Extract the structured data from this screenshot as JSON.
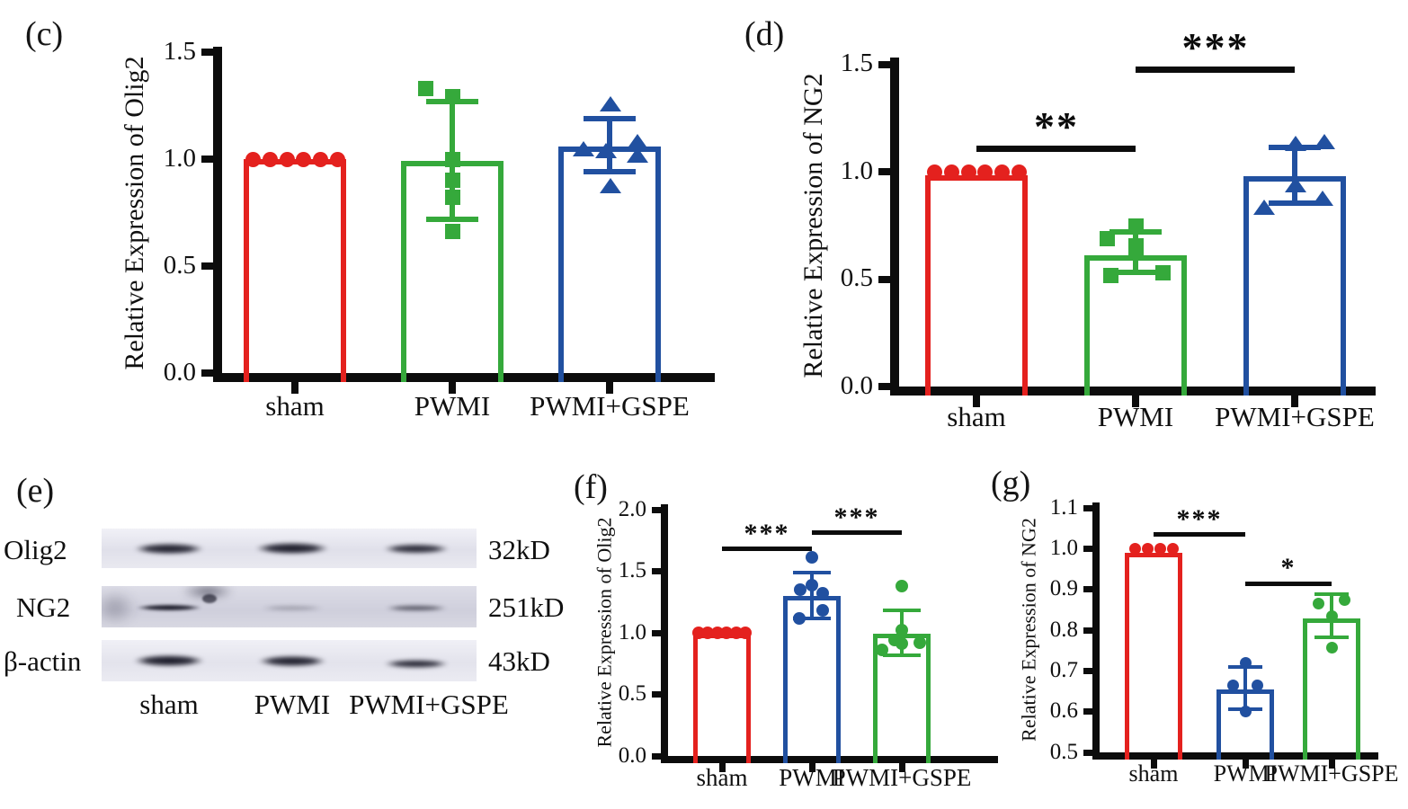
{
  "palette": {
    "red": "#E4211E",
    "green": "#35A93B",
    "blue": "#2150A0",
    "black": "#0c0c0c"
  },
  "chart_data": [
    {
      "id": "c",
      "panel_label": "(c)",
      "type": "bar",
      "title": "",
      "xlabel": "",
      "ylabel": "Relative Expression of Olig2",
      "ylim": [
        0,
        1.5
      ],
      "yticks": [
        0,
        0.5,
        1.0,
        1.5
      ],
      "ytick_labels": [
        "0.0",
        "0.5",
        "1.0",
        "1.5"
      ],
      "categories": [
        "sham",
        "PWMI",
        "PWMI+GSPE"
      ],
      "groups": [
        {
          "name": "sham",
          "color_key": "red",
          "marker": "circle",
          "bar": 1.0,
          "points": [
            [
              1.0,
              -47
            ],
            [
              1.0,
              -28
            ],
            [
              1.0,
              -9
            ],
            [
              1.0,
              9
            ],
            [
              1.0,
              28
            ],
            [
              1.0,
              47
            ]
          ]
        },
        {
          "name": "PWMI",
          "color_key": "green",
          "marker": "square",
          "bar": 0.99,
          "error": [
            0.72,
            1.27
          ],
          "points": [
            [
              1.33,
              -30
            ],
            [
              1.29,
              0
            ],
            [
              1.0,
              0
            ],
            [
              0.9,
              0
            ],
            [
              0.82,
              0
            ],
            [
              0.66,
              0
            ]
          ]
        },
        {
          "name": "PWMI+GSPE",
          "color_key": "blue",
          "marker": "triangle",
          "bar": 1.06,
          "error": [
            0.94,
            1.19
          ],
          "points": [
            [
              1.26,
              0
            ],
            [
              1.08,
              30
            ],
            [
              1.05,
              -30
            ],
            [
              1.04,
              -5
            ],
            [
              1.02,
              30
            ],
            [
              0.875,
              0
            ]
          ]
        }
      ],
      "significance": []
    },
    {
      "id": "d",
      "panel_label": "(d)",
      "type": "bar",
      "title": "",
      "xlabel": "",
      "ylabel": "Relative Expression of NG2",
      "ylim": [
        0,
        1.5
      ],
      "yticks": [
        0,
        0.5,
        1.0,
        1.5
      ],
      "ytick_labels": [
        "0.0",
        "0.5",
        "1.0",
        "1.5"
      ],
      "categories": [
        "sham",
        "PWMI",
        "PWMI+GSPE"
      ],
      "groups": [
        {
          "name": "sham",
          "color_key": "red",
          "marker": "circle",
          "bar": 0.985,
          "points": [
            [
              1.0,
              -47
            ],
            [
              1.0,
              -28
            ],
            [
              1.0,
              -9
            ],
            [
              1.0,
              9
            ],
            [
              1.0,
              28
            ],
            [
              1.0,
              47
            ]
          ]
        },
        {
          "name": "PWMI",
          "color_key": "green",
          "marker": "square",
          "bar": 0.61,
          "error": [
            0.53,
            0.72
          ],
          "points": [
            [
              0.745,
              0
            ],
            [
              0.69,
              -32
            ],
            [
              0.655,
              0
            ],
            [
              0.62,
              0
            ],
            [
              0.53,
              30
            ],
            [
              0.515,
              -28
            ]
          ]
        },
        {
          "name": "PWMI+GSPE",
          "color_key": "blue",
          "marker": "triangle",
          "bar": 0.98,
          "error": [
            0.855,
            1.115
          ],
          "points": [
            [
              1.14,
              32
            ],
            [
              1.13,
              0
            ],
            [
              0.94,
              0
            ],
            [
              0.875,
              30
            ],
            [
              0.835,
              -35
            ]
          ]
        }
      ],
      "significance": [
        {
          "label": "**",
          "from": 0,
          "to": 1,
          "v": 1.12
        },
        {
          "label": "***",
          "from": 1,
          "to": 2,
          "v": 1.49
        }
      ]
    },
    {
      "id": "f",
      "panel_label": "(f)",
      "type": "bar",
      "title": "",
      "xlabel": "",
      "ylabel": "Relative Expression of Olig2",
      "ylim": [
        0,
        2.0
      ],
      "yticks": [
        0,
        0.5,
        1.0,
        1.5,
        2.0
      ],
      "ytick_labels": [
        "0.0",
        "0.5",
        "1.0",
        "1.5",
        "2.0"
      ],
      "categories": [
        "sham",
        "PWMI",
        "PWMI+GSPE"
      ],
      "groups": [
        {
          "name": "sham",
          "color_key": "red",
          "marker": "circle",
          "bar": 0.995,
          "points": [
            [
              1.0,
              -26
            ],
            [
              1.0,
              -16
            ],
            [
              1.0,
              -5
            ],
            [
              1.0,
              5
            ],
            [
              1.0,
              16
            ],
            [
              1.0,
              26
            ]
          ]
        },
        {
          "name": "PWMI",
          "color_key": "blue",
          "marker": "circle",
          "bar": 1.3,
          "error": [
            1.12,
            1.49
          ],
          "points": [
            [
              1.61,
              0
            ],
            [
              1.39,
              0
            ],
            [
              1.35,
              -13
            ],
            [
              1.32,
              12
            ],
            [
              1.18,
              12
            ],
            [
              1.12,
              -14
            ]
          ]
        },
        {
          "name": "PWMI+GSPE",
          "color_key": "green",
          "marker": "circle",
          "bar": 0.99,
          "error": [
            0.82,
            1.18
          ],
          "points": [
            [
              1.38,
              0
            ],
            [
              1.02,
              0
            ],
            [
              0.94,
              -8
            ],
            [
              0.92,
              20
            ],
            [
              0.91,
              0
            ],
            [
              0.86,
              -22
            ]
          ]
        }
      ],
      "significance": [
        {
          "label": "***",
          "from": 0,
          "to": 1,
          "v": 1.7
        },
        {
          "label": "***",
          "from": 1,
          "to": 2,
          "v": 1.83
        }
      ]
    },
    {
      "id": "g",
      "panel_label": "(g)",
      "type": "bar",
      "title": "",
      "xlabel": "",
      "ylabel": "Relative Expression of NG2",
      "ylim": [
        0.5,
        1.1
      ],
      "yticks": [
        0.5,
        0.6,
        0.7,
        0.8,
        0.9,
        1.0,
        1.1
      ],
      "ytick_labels": [
        "0.5",
        "0.6",
        "0.7",
        "0.8",
        "0.9",
        "1.0",
        "1.1"
      ],
      "categories": [
        "sham",
        "PWMI",
        "PWMI+GSPE"
      ],
      "groups": [
        {
          "name": "sham",
          "color_key": "red",
          "marker": "circle",
          "bar": 0.99,
          "points": [
            [
              1.0,
              -21
            ],
            [
              1.0,
              -7
            ],
            [
              1.0,
              7
            ],
            [
              1.0,
              21
            ]
          ]
        },
        {
          "name": "PWMI",
          "color_key": "blue",
          "marker": "circle",
          "bar": 0.655,
          "error": [
            0.607,
            0.71
          ],
          "points": [
            [
              0.72,
              0
            ],
            [
              0.665,
              -14
            ],
            [
              0.665,
              13
            ],
            [
              0.6,
              0
            ]
          ]
        },
        {
          "name": "PWMI+GSPE",
          "color_key": "green",
          "marker": "circle",
          "bar": 0.83,
          "error": [
            0.782,
            0.888
          ],
          "points": [
            [
              0.865,
              -15
            ],
            [
              0.875,
              14
            ],
            [
              0.835,
              0
            ],
            [
              0.757,
              0
            ]
          ]
        }
      ],
      "significance": [
        {
          "label": "***",
          "from": 0,
          "to": 1,
          "v": 1.04
        },
        {
          "label": "*",
          "from": 1,
          "to": 2,
          "v": 0.92
        }
      ]
    }
  ],
  "blot": {
    "panel_label": "(e)",
    "lanes": [
      "sham",
      "PWMI",
      "PWMI+GSPE"
    ],
    "rows": [
      {
        "protein": "Olig2",
        "weight": "32kD",
        "band_intensities": [
          0.92,
          0.95,
          0.88
        ]
      },
      {
        "protein": "NG2",
        "weight": "251kD",
        "band_intensities": [
          0.95,
          0.3,
          0.62
        ]
      },
      {
        "protein": "β-actin",
        "weight": "43kD",
        "band_intensities": [
          0.96,
          0.93,
          0.9
        ]
      }
    ]
  }
}
